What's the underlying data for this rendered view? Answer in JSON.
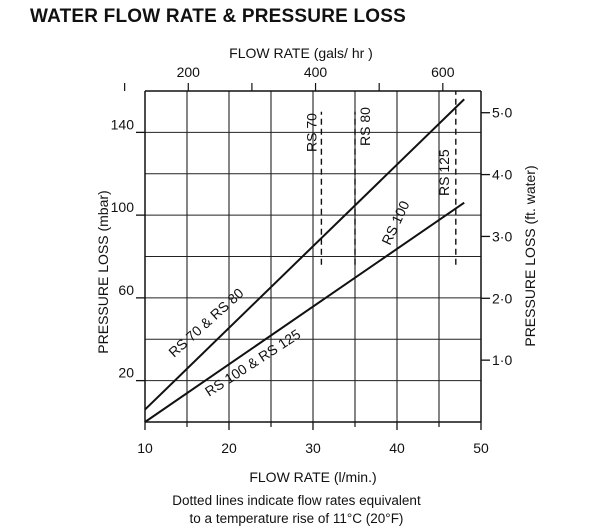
{
  "chart_data": {
    "type": "line",
    "title": "WATER FLOW RATE & PRESSURE LOSS",
    "xlabel": "FLOW RATE (l/min.)",
    "x_top_label": "FLOW RATE (gals/ hr )",
    "ylabel": "PRESSURE LOSS (mbar)",
    "y_right_label": "PRESSURE LOSS (ft. water)",
    "xlim": [
      10,
      50
    ],
    "ylim": [
      0,
      160
    ],
    "x_ticks": [
      "10",
      "20",
      "30",
      "40",
      "50"
    ],
    "y_ticks": [
      "20",
      "60",
      "100",
      "140"
    ],
    "x_top_ticks": [
      "200",
      "400",
      "600"
    ],
    "y_right_ticks": [
      "1·0",
      "2·0",
      "3·0",
      "4·0",
      "5·0"
    ],
    "grid": true,
    "series": [
      {
        "name": "RS 70 & RS 80",
        "x": [
          10,
          48
        ],
        "y": [
          6,
          156
        ]
      },
      {
        "name": "RS 100 & RS 125",
        "x": [
          10,
          48
        ],
        "y": [
          0,
          106
        ]
      }
    ],
    "reference_lines": [
      {
        "label": "RS 70",
        "x": 31
      },
      {
        "label": "RS 80",
        "x": 35
      },
      {
        "label": "RS 125",
        "x": 47
      }
    ],
    "annotations": [
      "RS 100"
    ]
  },
  "caption": {
    "line1": "Dotted lines indicate flow rates equivalent",
    "line2": "to a temperature rise of 11°C (20°F)"
  }
}
